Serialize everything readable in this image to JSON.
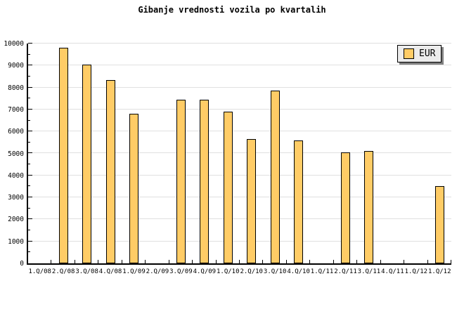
{
  "title": "Gibanje vrednosti vozila po kvartalih",
  "legend": {
    "label": "EUR",
    "position": "top-right"
  },
  "colors": {
    "background": "#FFFFFF",
    "bar_fill": "#FFCC66",
    "bar_border": "#000000",
    "gridline": "#E0E0E0",
    "axis": "#000000",
    "legend_bg": "#ECECEC",
    "legend_shadow": "#808080",
    "text": "#000000"
  },
  "chart_data": {
    "type": "bar",
    "title": "Gibanje vrednosti vozila po kvartalih",
    "series_name": "EUR",
    "categories": [
      "1.Q/08",
      "2.Q/08",
      "3.Q/08",
      "4.Q/08",
      "1.Q/09",
      "2.Q/09",
      "3.Q/09",
      "4.Q/09",
      "1.Q/10",
      "2.Q/10",
      "3.Q/10",
      "4.Q/10",
      "1.Q/11",
      "2.Q/11",
      "3.Q/11",
      "4.Q/11",
      "1.Q/12",
      "1.Q/12"
    ],
    "values": [
      null,
      9800,
      9050,
      8350,
      6800,
      null,
      7450,
      7450,
      6900,
      5650,
      7850,
      5600,
      null,
      5050,
      5100,
      null,
      null,
      3500
    ],
    "ylim": [
      0,
      10000
    ],
    "ytick_interval": 1000,
    "yminor_tick_interval": 500,
    "ytick_labels": [
      "0",
      "1000",
      "2000",
      "3000",
      "4000",
      "5000",
      "6000",
      "7000",
      "8000",
      "9000",
      "10000"
    ],
    "grid": "horizontal-major",
    "legend_position": "top-right",
    "xlabel": "",
    "ylabel": ""
  }
}
